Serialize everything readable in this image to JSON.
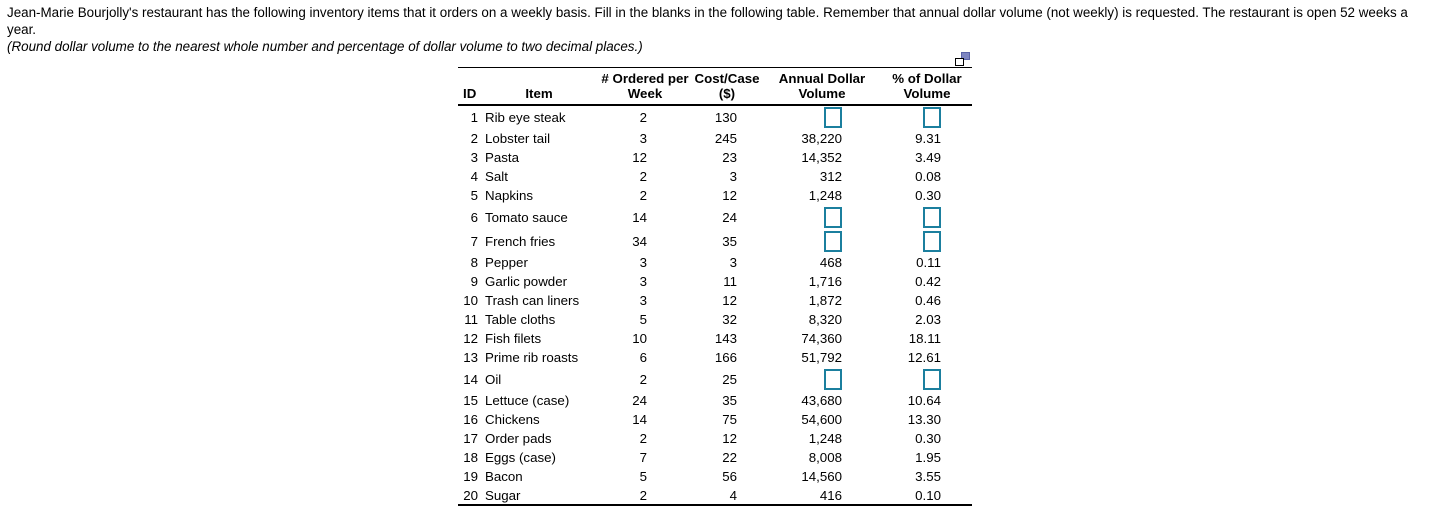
{
  "instructions": {
    "line1": "Jean-Marie Bourjolly's restaurant has the following inventory items that it orders on a weekly basis. Fill in the blanks in the following table. Remember that annual dollar volume (not weekly) is requested. The restaurant is open 52 weeks a year.",
    "line2": "(Round dollar volume to the nearest whole number and percentage of dollar volume to two decimal places.)"
  },
  "icons": {
    "popout": "popout-window-icon"
  },
  "colors": {
    "answer_box_border": "#1b7f9e",
    "popout_icon_fill": "#7d85c1",
    "rule": "#000000"
  },
  "table": {
    "columns": [
      {
        "key": "id",
        "line1": "",
        "line2": "ID"
      },
      {
        "key": "item",
        "line1": "",
        "line2": "Item"
      },
      {
        "key": "ordered",
        "line1": "# Ordered per",
        "line2": "Week"
      },
      {
        "key": "cost",
        "line1": "Cost/Case",
        "line2": "($)"
      },
      {
        "key": "annual",
        "line1": "Annual Dollar",
        "line2": "Volume"
      },
      {
        "key": "pct",
        "line1": "% of Dollar",
        "line2": "Volume"
      }
    ],
    "rows": [
      {
        "id": "1",
        "item": "Rib eye steak",
        "ordered": "2",
        "cost": "130",
        "annual": null,
        "pct": null
      },
      {
        "id": "2",
        "item": "Lobster tail",
        "ordered": "3",
        "cost": "245",
        "annual": "38,220",
        "pct": "9.31"
      },
      {
        "id": "3",
        "item": "Pasta",
        "ordered": "12",
        "cost": "23",
        "annual": "14,352",
        "pct": "3.49"
      },
      {
        "id": "4",
        "item": "Salt",
        "ordered": "2",
        "cost": "3",
        "annual": "312",
        "pct": "0.08"
      },
      {
        "id": "5",
        "item": "Napkins",
        "ordered": "2",
        "cost": "12",
        "annual": "1,248",
        "pct": "0.30"
      },
      {
        "id": "6",
        "item": "Tomato sauce",
        "ordered": "14",
        "cost": "24",
        "annual": null,
        "pct": null
      },
      {
        "id": "7",
        "item": "French fries",
        "ordered": "34",
        "cost": "35",
        "annual": null,
        "pct": null
      },
      {
        "id": "8",
        "item": "Pepper",
        "ordered": "3",
        "cost": "3",
        "annual": "468",
        "pct": "0.11"
      },
      {
        "id": "9",
        "item": "Garlic powder",
        "ordered": "3",
        "cost": "11",
        "annual": "1,716",
        "pct": "0.42"
      },
      {
        "id": "10",
        "item": "Trash can liners",
        "ordered": "3",
        "cost": "12",
        "annual": "1,872",
        "pct": "0.46"
      },
      {
        "id": "11",
        "item": "Table cloths",
        "ordered": "5",
        "cost": "32",
        "annual": "8,320",
        "pct": "2.03"
      },
      {
        "id": "12",
        "item": "Fish filets",
        "ordered": "10",
        "cost": "143",
        "annual": "74,360",
        "pct": "18.11"
      },
      {
        "id": "13",
        "item": "Prime rib roasts",
        "ordered": "6",
        "cost": "166",
        "annual": "51,792",
        "pct": "12.61"
      },
      {
        "id": "14",
        "item": "Oil",
        "ordered": "2",
        "cost": "25",
        "annual": null,
        "pct": null
      },
      {
        "id": "15",
        "item": "Lettuce (case)",
        "ordered": "24",
        "cost": "35",
        "annual": "43,680",
        "pct": "10.64"
      },
      {
        "id": "16",
        "item": "Chickens",
        "ordered": "14",
        "cost": "75",
        "annual": "54,600",
        "pct": "13.30"
      },
      {
        "id": "17",
        "item": "Order pads",
        "ordered": "2",
        "cost": "12",
        "annual": "1,248",
        "pct": "0.30"
      },
      {
        "id": "18",
        "item": "Eggs (case)",
        "ordered": "7",
        "cost": "22",
        "annual": "8,008",
        "pct": "1.95"
      },
      {
        "id": "19",
        "item": "Bacon",
        "ordered": "5",
        "cost": "56",
        "annual": "14,560",
        "pct": "3.55"
      },
      {
        "id": "20",
        "item": "Sugar",
        "ordered": "2",
        "cost": "4",
        "annual": "416",
        "pct": "0.10"
      }
    ]
  }
}
